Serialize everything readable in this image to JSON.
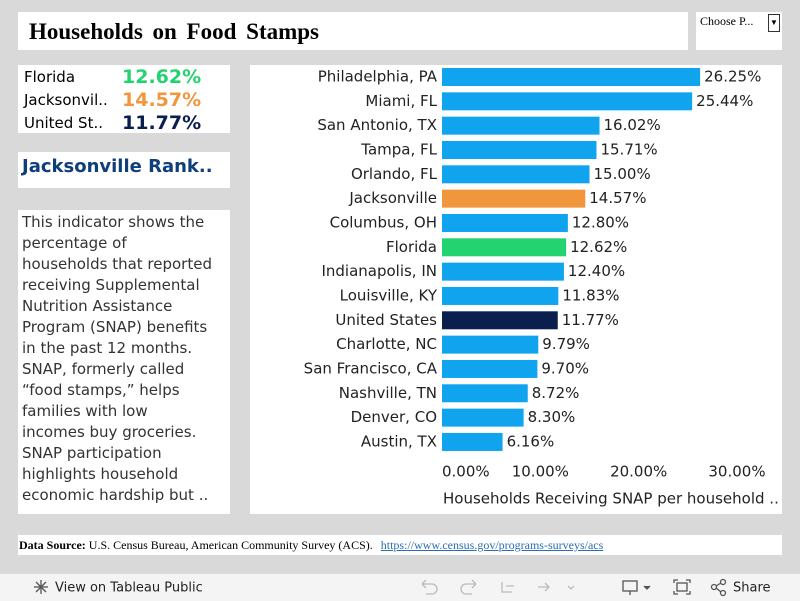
{
  "header": {
    "title": "Households on Food Stamps",
    "dropdown": "Choose P..."
  },
  "kpis": [
    {
      "name": "Florida",
      "value": "12.62%",
      "color": "#23d36f"
    },
    {
      "name": "Jacksonvil..",
      "value": "14.57%",
      "color": "#f0963c"
    },
    {
      "name": "United St..",
      "value": "11.77%",
      "color": "#0b1f4f"
    }
  ],
  "rank_title": "Jacksonville Rank..",
  "description": {
    "lines": [
      "This indicator shows the",
      "percentage of",
      "households that reported",
      "receiving Supplemental",
      "Nutrition Assistance",
      "Program (SNAP) benefits",
      "in the past 12 months.",
      "SNAP, formerly called",
      "“food stamps,” helps",
      "families with low",
      "incomes buy groceries.",
      "SNAP participation",
      "highlights household",
      "economic hardship but .."
    ]
  },
  "chart_data": {
    "type": "hbar",
    "x_label": "Households Receiving SNAP per household ..",
    "categories": [
      "Philadelphia, PA",
      "Miami, FL",
      "San Antonio, TX",
      "Tampa, FL",
      "Orlando, FL",
      "Jacksonville",
      "Columbus, OH",
      "Florida",
      "Indianapolis, IN",
      "Louisville, KY",
      "United States",
      "Charlotte, NC",
      "San Francisco, CA",
      "Nashville, TN",
      "Denver, CO",
      "Austin, TX"
    ],
    "series": [
      {
        "values": [
          26.25,
          25.44,
          16.02,
          15.71,
          15.0,
          14.57,
          12.8,
          12.62,
          12.4,
          11.83,
          11.77,
          9.79,
          9.7,
          8.72,
          8.3,
          6.16
        ],
        "value_labels": [
          "26.25%",
          "25.44%",
          "16.02%",
          "15.71%",
          "15.00%",
          "14.57%",
          "12.80%",
          "12.62%",
          "12.40%",
          "11.83%",
          "11.77%",
          "9.79%",
          "9.70%",
          "8.72%",
          "8.30%",
          "6.16%"
        ],
        "colors": [
          "#10a4ef",
          "#10a4ef",
          "#10a4ef",
          "#10a4ef",
          "#10a4ef",
          "#f0963c",
          "#10a4ef",
          "#23d36f",
          "#10a4ef",
          "#10a4ef",
          "#0b1f4f",
          "#10a4ef",
          "#10a4ef",
          "#10a4ef",
          "#10a4ef",
          "#10a4ef"
        ]
      }
    ],
    "xlim": [
      0,
      30
    ],
    "xticks": [
      {
        "value": 0,
        "label": "0.00%"
      },
      {
        "value": 10,
        "label": "10.00%"
      },
      {
        "value": 20,
        "label": "20.00%"
      },
      {
        "value": 30,
        "label": "30.00%"
      }
    ]
  },
  "footer": {
    "label": "Data Source:",
    "text": "U.S. Census Bureau, American Community Survey (ACS).",
    "link": "https://www.census.gov/programs-surveys/acs"
  },
  "toolbar": {
    "view": "View on Tableau Public",
    "share": "Share"
  }
}
